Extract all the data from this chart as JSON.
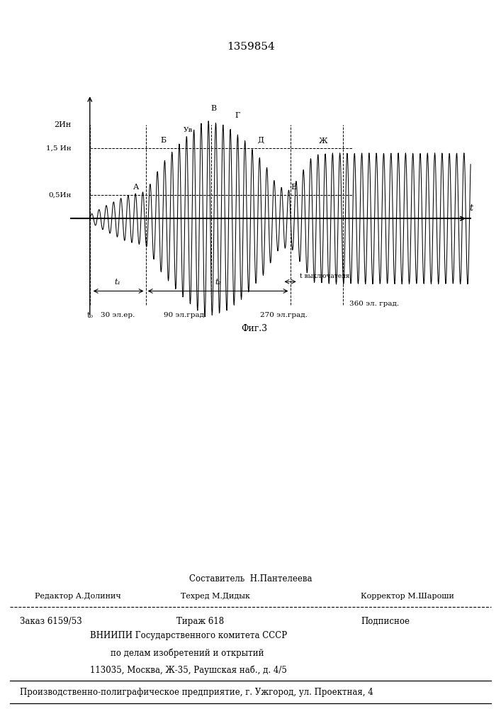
{
  "title": "1359854",
  "fig_label": "Фиг.3",
  "bg_color": "#ffffff",
  "y_label_2In": "2Ин",
  "y_label_15In": "1,5 Ин",
  "y_label_05In": "0,5Ин",
  "t_label": "t",
  "label_A": "А",
  "label_B": "Б",
  "label_Uv": "Ув",
  "label_V": "В",
  "label_G": "Г",
  "label_D": "Д",
  "label_E": "Е",
  "label_Zh": "Ж",
  "label_t0": "t₀",
  "label_t1": "t₁",
  "label_t2": "t₂",
  "label_tvykl": "t выключателя",
  "label_30": "30 эл.ер.",
  "label_90": "90 эл.град.",
  "label_270": "270 эл.град.",
  "label_360": "360 эл. град.",
  "footer_sostavitel": "Составитель  Н.Пантелеева",
  "footer_redaktor": "Редактор А.Долинич",
  "footer_tehred": "Техред М.Дидык",
  "footer_korrektor": "Корректор М.Шароши",
  "footer_zakaz": "Заказ 6159/53",
  "footer_tirazh": "Тираж 618",
  "footer_podpisnoe": "Подписное",
  "footer_vniiipi": "ВНИИПИ Государственного комитета СССР",
  "footer_po_delam": "по делам изобретений и открытий",
  "footer_address": "113035, Москва, Ж-35, Раушская наб., д. 4/5",
  "footer_production": "Производственно-полиграфическое предприятие, г. Ужгород, ул. Проектная, 4"
}
